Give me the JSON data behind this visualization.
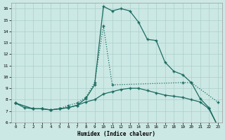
{
  "xlabel": "Humidex (Indice chaleur)",
  "bg_color": "#cce8e4",
  "grid_color": "#aacfcb",
  "line_color": "#1a6b60",
  "xlim": [
    -0.5,
    23.5
  ],
  "ylim": [
    6,
    16.5
  ],
  "xticks": [
    0,
    1,
    2,
    3,
    4,
    5,
    6,
    7,
    8,
    9,
    10,
    11,
    12,
    13,
    14,
    15,
    16,
    17,
    18,
    19,
    20,
    21,
    22,
    23
  ],
  "yticks": [
    6,
    7,
    8,
    9,
    10,
    11,
    12,
    13,
    14,
    15,
    16
  ],
  "line1_x": [
    0,
    1,
    2,
    3,
    4,
    5,
    6,
    7,
    8,
    9,
    10,
    11,
    12,
    13,
    14,
    15,
    16,
    17,
    18,
    19,
    20,
    21,
    22,
    23
  ],
  "line1_y": [
    7.7,
    7.3,
    7.2,
    7.2,
    7.1,
    7.2,
    7.3,
    7.5,
    8.1,
    9.3,
    16.2,
    15.8,
    16.0,
    15.8,
    14.8,
    13.3,
    13.2,
    11.3,
    10.5,
    10.2,
    9.5,
    8.1,
    7.3,
    5.7
  ],
  "line2_x": [
    0,
    2,
    3,
    4,
    5,
    6,
    7,
    8,
    9,
    10,
    11,
    19,
    20,
    23
  ],
  "line2_y": [
    7.7,
    7.2,
    7.2,
    7.1,
    7.2,
    7.5,
    7.7,
    8.2,
    9.5,
    14.5,
    9.3,
    9.5,
    9.5,
    7.8
  ],
  "line3_x": [
    0,
    2,
    3,
    4,
    5,
    6,
    7,
    8,
    9,
    10,
    11,
    12,
    13,
    14,
    15,
    16,
    17,
    18,
    19,
    20,
    21,
    22,
    23
  ],
  "line3_y": [
    7.7,
    7.2,
    7.2,
    7.1,
    7.2,
    7.3,
    7.5,
    7.8,
    8.0,
    8.5,
    8.7,
    8.9,
    9.0,
    9.0,
    8.8,
    8.6,
    8.4,
    8.3,
    8.2,
    8.0,
    7.8,
    7.2,
    5.7
  ]
}
